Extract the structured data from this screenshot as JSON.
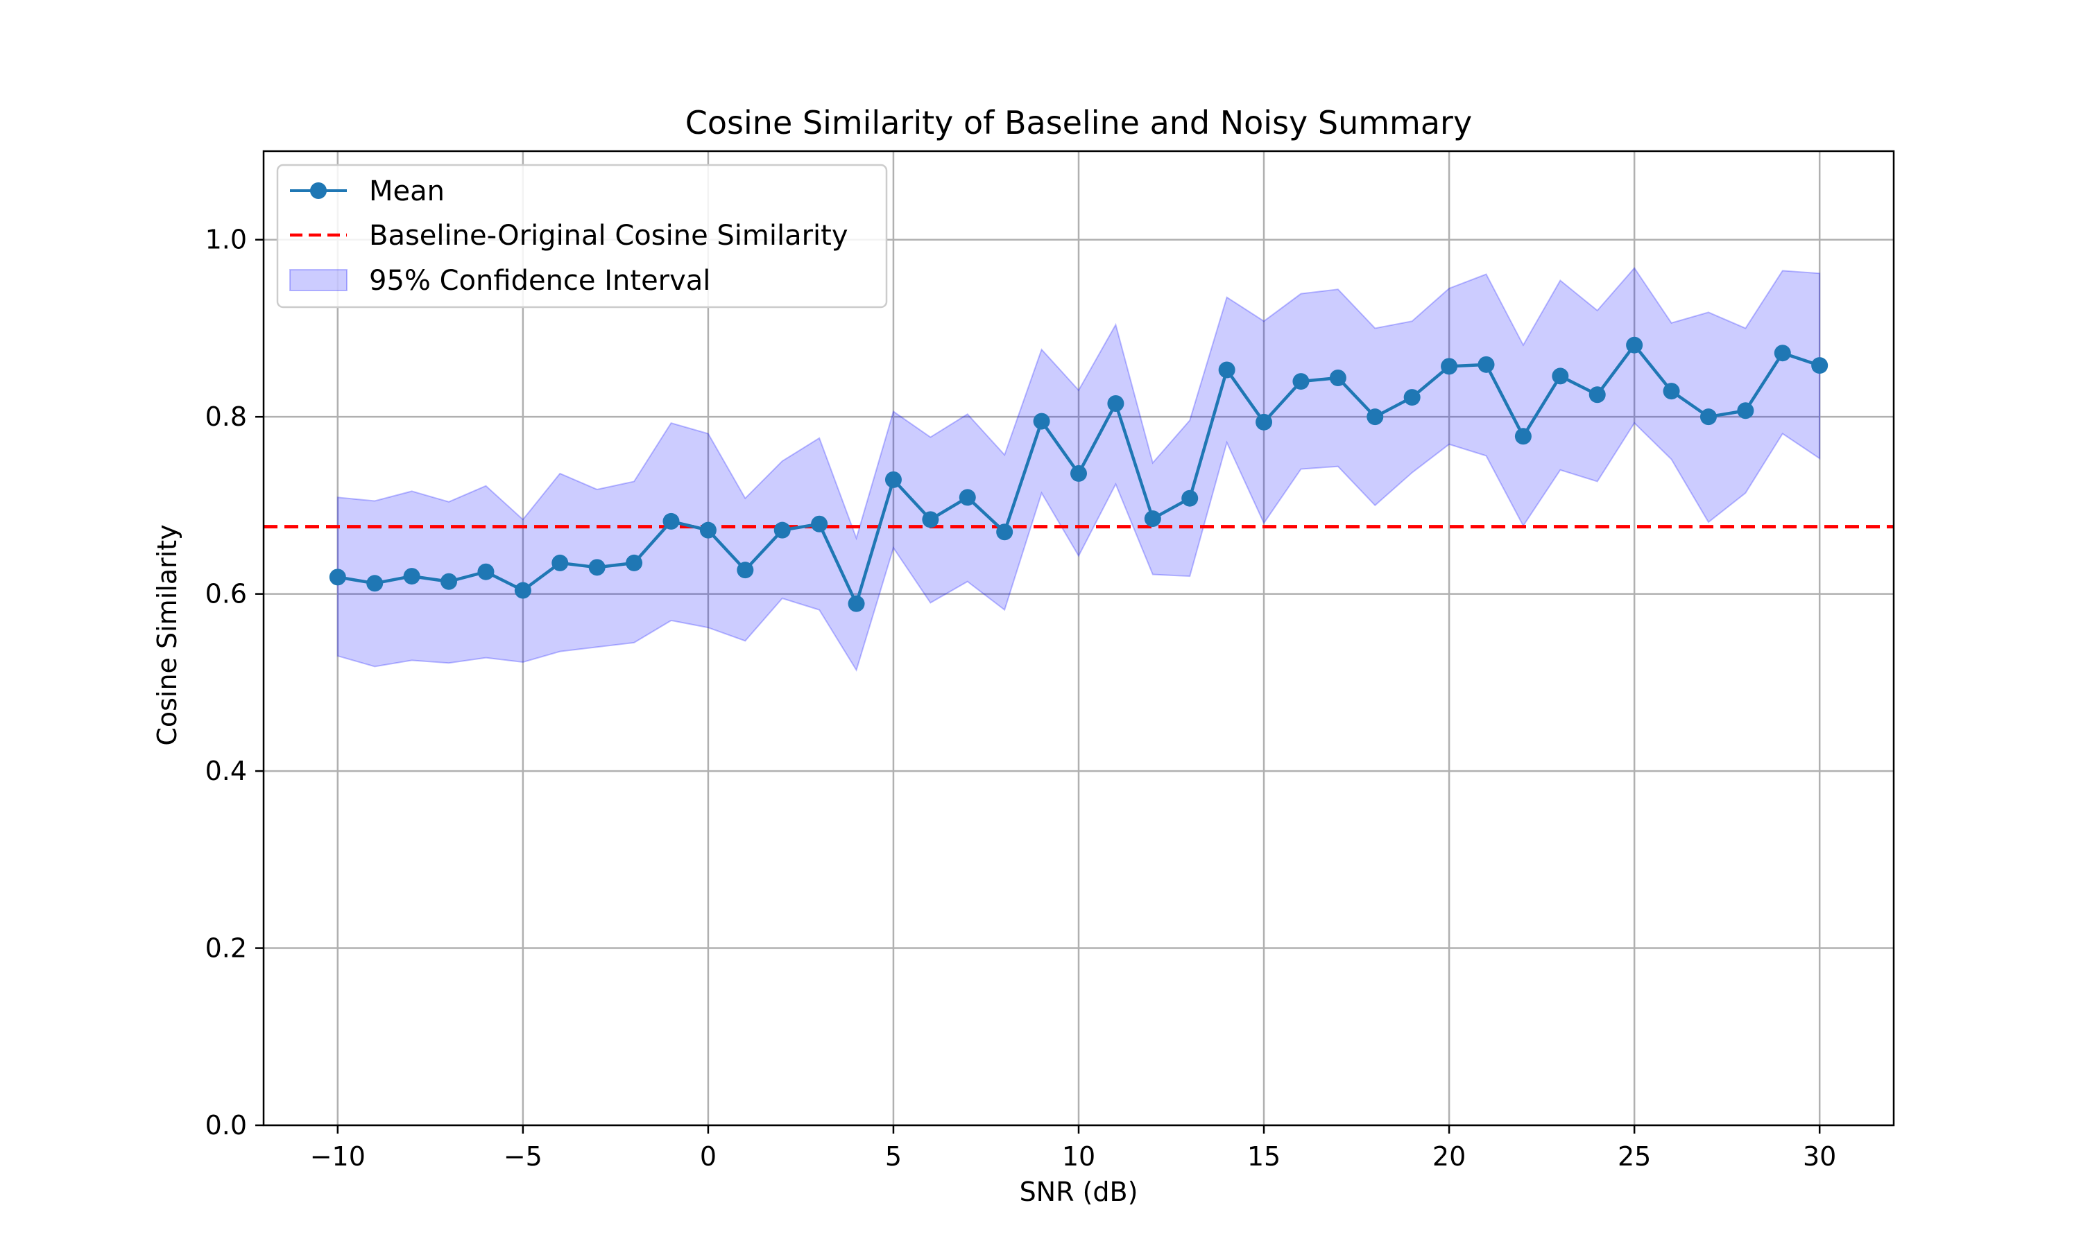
{
  "chart_data": {
    "type": "line",
    "title": "Cosine Similarity of Baseline and Noisy Summary",
    "xlabel": "SNR (dB)",
    "ylabel": "Cosine Similarity",
    "xlim": [
      -12,
      32
    ],
    "ylim": [
      0.0,
      1.1
    ],
    "xticks": [
      -10,
      -5,
      0,
      5,
      10,
      15,
      20,
      25,
      30
    ],
    "xtick_labels": [
      "−10",
      "−5",
      "0",
      "5",
      "10",
      "15",
      "20",
      "25",
      "30"
    ],
    "yticks": [
      0.0,
      0.2,
      0.4,
      0.6,
      0.8,
      1.0
    ],
    "ytick_labels": [
      "0.0",
      "0.2",
      "0.4",
      "0.6",
      "0.8",
      "1.0"
    ],
    "grid": true,
    "legend_position": "top-left",
    "x": [
      -10,
      -9,
      -8,
      -7,
      -6,
      -5,
      -4,
      -3,
      -2,
      -1,
      0,
      1,
      2,
      3,
      4,
      5,
      6,
      7,
      8,
      9,
      10,
      11,
      12,
      13,
      14,
      15,
      16,
      17,
      18,
      19,
      20,
      21,
      22,
      23,
      24,
      25,
      26,
      27,
      28,
      29,
      30
    ],
    "series": [
      {
        "name": "Mean",
        "color": "#1f77b4",
        "marker": "circle",
        "values": [
          0.619,
          0.612,
          0.62,
          0.614,
          0.625,
          0.604,
          0.635,
          0.63,
          0.635,
          0.682,
          0.672,
          0.627,
          0.672,
          0.679,
          0.589,
          0.729,
          0.684,
          0.709,
          0.67,
          0.795,
          0.736,
          0.815,
          0.685,
          0.708,
          0.853,
          0.794,
          0.84,
          0.844,
          0.8,
          0.822,
          0.857,
          0.859,
          0.778,
          0.846,
          0.825,
          0.881,
          0.829,
          0.8,
          0.807,
          0.872,
          0.858
        ]
      }
    ],
    "reference_line": {
      "name": "Baseline-Original Cosine Similarity",
      "color": "#ff0000",
      "style": "dashed",
      "y": 0.676
    },
    "confidence_interval": {
      "name": "95% Confidence Interval",
      "color": "#0000ff",
      "opacity": 0.2,
      "lower": [
        0.53,
        0.518,
        0.525,
        0.522,
        0.528,
        0.523,
        0.535,
        0.54,
        0.545,
        0.57,
        0.562,
        0.547,
        0.595,
        0.582,
        0.514,
        0.652,
        0.59,
        0.614,
        0.582,
        0.714,
        0.643,
        0.724,
        0.622,
        0.62,
        0.771,
        0.68,
        0.741,
        0.744,
        0.7,
        0.737,
        0.769,
        0.756,
        0.677,
        0.74,
        0.727,
        0.793,
        0.752,
        0.681,
        0.714,
        0.781,
        0.753
      ],
      "upper": [
        0.709,
        0.705,
        0.716,
        0.704,
        0.722,
        0.684,
        0.736,
        0.718,
        0.727,
        0.793,
        0.781,
        0.708,
        0.75,
        0.776,
        0.663,
        0.806,
        0.777,
        0.803,
        0.757,
        0.876,
        0.83,
        0.904,
        0.748,
        0.796,
        0.935,
        0.908,
        0.939,
        0.944,
        0.9,
        0.908,
        0.945,
        0.961,
        0.881,
        0.954,
        0.92,
        0.968,
        0.906,
        0.918,
        0.9,
        0.965,
        0.962
      ]
    }
  }
}
